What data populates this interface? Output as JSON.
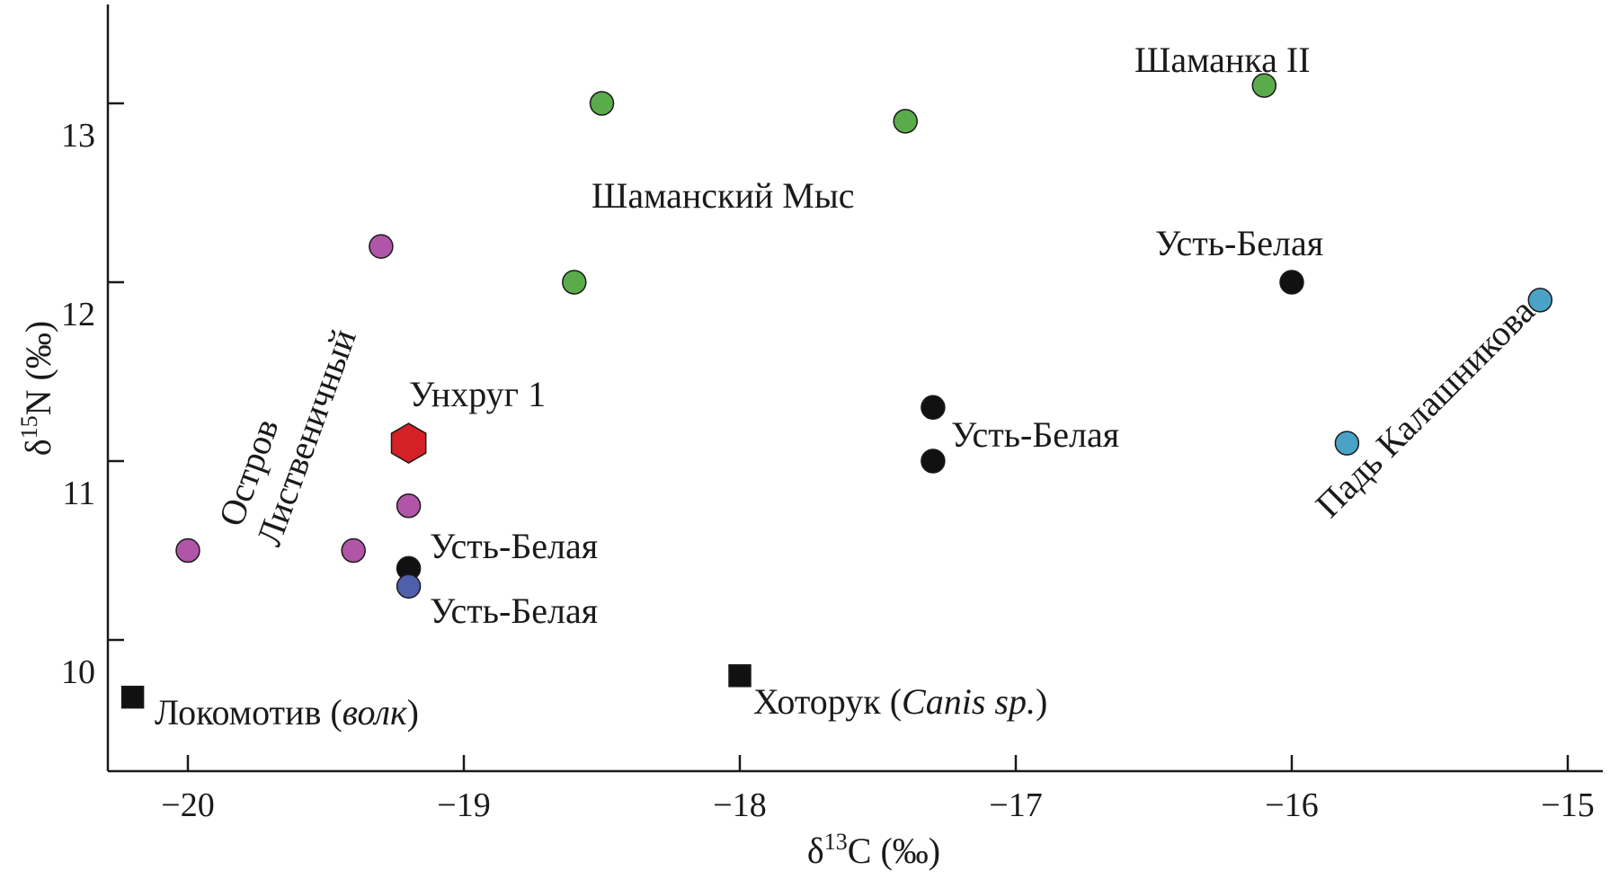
{
  "chart_data": {
    "type": "scatter",
    "title": "",
    "xlabel": {
      "base": "δ",
      "sup": "13",
      "rest": "C (‰)"
    },
    "ylabel": {
      "base": "δ",
      "sup": "15",
      "rest": "N (‰)"
    },
    "xlim": [
      -20.3,
      -14.85
    ],
    "ylim": [
      9.28,
      13.7
    ],
    "xticks": [
      -20,
      -19,
      -18,
      -17,
      -16,
      -15
    ],
    "xtick_labels": [
      "−20",
      "−19",
      "−18",
      "−17",
      "−16",
      "−15"
    ],
    "yticks": [
      10,
      11,
      12,
      13
    ],
    "ytick_labels": [
      "10",
      "11",
      "12",
      "13"
    ],
    "grid": false,
    "legend": "none",
    "colors": {
      "green": "#5aab4a",
      "magenta": "#b155a8",
      "black": "#111111",
      "blue": "#4f5fac",
      "cyan": "#4aa3c6",
      "red": "#d42026"
    },
    "series": [
      {
        "color": "green",
        "marker": "circle",
        "points": [
          [
            -18.5,
            13.0
          ],
          [
            -17.4,
            12.9
          ],
          [
            -16.1,
            13.1
          ],
          [
            -18.6,
            12.0
          ]
        ]
      },
      {
        "color": "magenta",
        "marker": "circle",
        "points": [
          [
            -19.3,
            12.2
          ],
          [
            -19.2,
            10.75
          ],
          [
            -20.0,
            10.5
          ],
          [
            -19.4,
            10.5
          ]
        ]
      },
      {
        "color": "black",
        "marker": "circle",
        "points": [
          [
            -17.3,
            11.3
          ],
          [
            -17.3,
            11.0
          ],
          [
            -16.0,
            12.0
          ],
          [
            -19.2,
            10.4
          ]
        ]
      },
      {
        "color": "blue",
        "marker": "circle",
        "points": [
          [
            -19.2,
            10.3
          ]
        ]
      },
      {
        "color": "cyan",
        "marker": "circle",
        "points": [
          [
            -15.1,
            11.9
          ],
          [
            -15.8,
            11.1
          ]
        ]
      },
      {
        "color": "red",
        "marker": "hexagon",
        "points": [
          [
            -19.2,
            11.1
          ]
        ]
      },
      {
        "color": "black",
        "marker": "square",
        "points": [
          [
            -20.2,
            9.68
          ],
          [
            -18.0,
            9.8
          ]
        ]
      }
    ],
    "annotations": [
      {
        "text": "Шаманка II"
      },
      {
        "text": "Шаманский Мыс"
      },
      {
        "text": "Усть-Белая"
      },
      {
        "text": "Унхруг 1"
      },
      {
        "text": "Усть-Белая"
      },
      {
        "text": "Усть-Белая"
      },
      {
        "text": "Усть-Белая"
      },
      {
        "text": "Остров"
      },
      {
        "text": "Лиственичный"
      },
      {
        "text": "Падь Калашникова"
      },
      {
        "text_parts": [
          "Локомотив (",
          "волк",
          ")"
        ]
      },
      {
        "text_parts": [
          "Хоторук (",
          "Canis sp.",
          ")"
        ]
      }
    ]
  }
}
